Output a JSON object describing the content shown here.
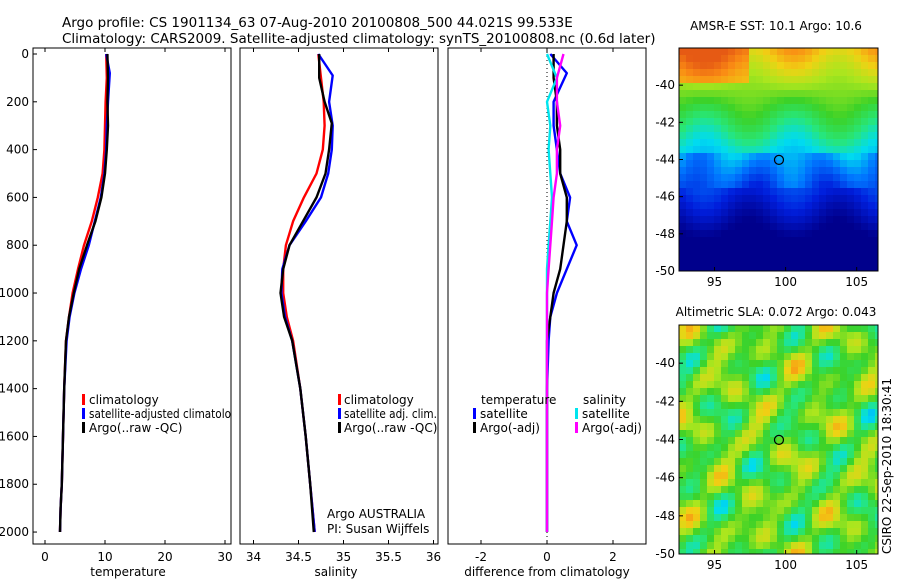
{
  "header": {
    "line1": "Argo profile: CS 1901134_63 07-Aug-2010 20100808_500 44.021S 99.533E",
    "line2": "Climatology: CARS2009. Satellite-adjusted climatology: synTS_20100808.nc (0.6d later)"
  },
  "side_stamp": "CSIRO 22-Sep-2010 18:30:41",
  "colors": {
    "climatology": "#ff0000",
    "satellite": "#0000ff",
    "argo": "#000000",
    "sal_satellite": "#00e5ee",
    "sal_argo": "#ff00ff",
    "zero_line": "#000000"
  },
  "chart_data": [
    {
      "type": "line",
      "id": "temperature",
      "xlabel": "temperature",
      "ylabel": "",
      "xlim": [
        -2,
        31
      ],
      "ylim": [
        0,
        2050
      ],
      "xticks": [
        0,
        10,
        20,
        30
      ],
      "yticks": [
        0,
        200,
        400,
        600,
        800,
        1000,
        1200,
        1400,
        1600,
        1800,
        2000
      ],
      "legend": {
        "position": "lower-right",
        "entries": [
          "climatology",
          "satellite-adjusted climatolo",
          "Argo(..raw -QC)"
        ]
      },
      "series": [
        {
          "name": "climatology",
          "color_key": "climatology",
          "x": [
            10.2,
            10.3,
            10.1,
            10.0,
            9.9,
            9.6,
            8.8,
            7.8,
            6.5,
            5.5,
            4.6,
            4.0,
            3.5,
            3.2,
            3.0,
            2.8,
            2.6,
            2.5
          ],
          "y": [
            0,
            100,
            200,
            300,
            400,
            500,
            600,
            700,
            800,
            900,
            1000,
            1100,
            1200,
            1400,
            1600,
            1800,
            1900,
            2000
          ]
        },
        {
          "name": "satellite-adjusted climatology",
          "color_key": "satellite",
          "x": [
            10.2,
            10.8,
            10.5,
            10.3,
            10.2,
            9.9,
            9.3,
            8.3,
            7.3,
            6.0,
            4.9,
            4.1,
            3.6,
            3.2,
            3.0,
            2.8,
            2.6,
            2.5
          ],
          "y": [
            0,
            80,
            200,
            300,
            400,
            500,
            600,
            700,
            800,
            900,
            1000,
            1100,
            1200,
            1400,
            1600,
            1800,
            1900,
            2000
          ]
        },
        {
          "name": "Argo(..raw -QC)",
          "color_key": "argo",
          "x": [
            10.4,
            10.5,
            10.4,
            10.5,
            10.3,
            10.0,
            9.4,
            8.4,
            7.0,
            5.7,
            4.8,
            4.0,
            3.5,
            3.2,
            3.0,
            2.8,
            2.6,
            2.5
          ],
          "y": [
            0,
            100,
            200,
            300,
            400,
            500,
            600,
            700,
            800,
            900,
            1000,
            1100,
            1200,
            1400,
            1600,
            1800,
            1900,
            2000
          ]
        }
      ]
    },
    {
      "type": "line",
      "id": "salinity",
      "xlabel": "salinity",
      "ylabel": "",
      "xlim": [
        33.85,
        36.05
      ],
      "ylim": [
        0,
        2050
      ],
      "xticks": [
        34,
        34.5,
        35,
        35.5,
        36
      ],
      "legend": {
        "position": "lower-right",
        "entries": [
          "climatology",
          "satellite adj. clim.",
          "Argo(..raw -QC)"
        ]
      },
      "annotation": [
        "Argo AUSTRALIA",
        "PI: Susan Wijffels"
      ],
      "series": [
        {
          "name": "climatology",
          "color_key": "climatology",
          "x": [
            34.72,
            34.75,
            34.78,
            34.79,
            34.77,
            34.7,
            34.56,
            34.44,
            34.36,
            34.33,
            34.33,
            34.37,
            34.44,
            34.52,
            34.58,
            34.63,
            34.68
          ],
          "y": [
            0,
            100,
            200,
            300,
            400,
            500,
            600,
            700,
            800,
            900,
            1000,
            1100,
            1200,
            1400,
            1600,
            1800,
            2000
          ]
        },
        {
          "name": "satellite adj. clim.",
          "color_key": "satellite",
          "x": [
            34.72,
            34.88,
            34.84,
            34.88,
            34.87,
            34.83,
            34.75,
            34.58,
            34.4,
            34.32,
            34.31,
            34.35,
            34.43,
            34.52,
            34.58,
            34.63,
            34.68
          ],
          "y": [
            0,
            90,
            200,
            300,
            400,
            500,
            600,
            700,
            800,
            900,
            1000,
            1100,
            1200,
            1400,
            1600,
            1800,
            2000
          ]
        },
        {
          "name": "Argo(..raw -QC)",
          "color_key": "argo",
          "x": [
            34.73,
            34.73,
            34.79,
            34.87,
            34.84,
            34.8,
            34.7,
            34.55,
            34.4,
            34.33,
            34.3,
            34.34,
            34.43,
            34.52,
            34.58,
            34.63,
            34.67
          ],
          "y": [
            0,
            100,
            200,
            290,
            400,
            500,
            600,
            700,
            800,
            900,
            1000,
            1100,
            1200,
            1400,
            1600,
            1800,
            2000
          ]
        }
      ]
    },
    {
      "type": "line",
      "id": "difference",
      "xlabel": "difference from climatology",
      "ylabel": "",
      "xlim": [
        -3,
        3
      ],
      "ylim": [
        0,
        2050
      ],
      "xticks": [
        -2,
        0,
        2
      ],
      "legend": {
        "position": "lower-center",
        "group_titles": [
          "temperature",
          "salinity"
        ],
        "entries": [
          "satellite",
          "Argo(-adj)",
          "satellite",
          "Argo(-adj)"
        ]
      },
      "series": [
        {
          "name": "temperature satellite",
          "color_key": "satellite",
          "x": [
            0.1,
            0.6,
            0.2,
            0.2,
            0.3,
            0.4,
            0.7,
            0.6,
            0.9,
            0.6,
            0.3,
            0.1,
            0.05,
            0.0,
            0.0
          ],
          "y": [
            0,
            80,
            200,
            300,
            400,
            500,
            600,
            700,
            800,
            900,
            1000,
            1100,
            1200,
            1400,
            2000
          ]
        },
        {
          "name": "temperature Argo(-adj)",
          "color_key": "argo",
          "x": [
            0.2,
            0.2,
            0.3,
            0.3,
            0.4,
            0.4,
            0.6,
            0.6,
            0.5,
            0.4,
            0.2,
            0.1,
            0.0,
            0.0,
            0.0
          ],
          "y": [
            0,
            100,
            200,
            300,
            400,
            500,
            600,
            700,
            800,
            900,
            1000,
            1100,
            1200,
            1400,
            2000
          ]
        },
        {
          "name": "salinity satellite",
          "color_key": "sal_satellite",
          "x": [
            0.0,
            0.3,
            0.0,
            0.1,
            0.05,
            0.1,
            0.15,
            0.1,
            0.05,
            0.0,
            0.0,
            0.0,
            0.0,
            0.0,
            0.0
          ],
          "y": [
            0,
            100,
            200,
            300,
            400,
            500,
            600,
            700,
            800,
            900,
            1000,
            1100,
            1200,
            1400,
            2000
          ]
        },
        {
          "name": "salinity Argo(-adj)",
          "color_key": "sal_argo",
          "x": [
            0.5,
            0.3,
            0.3,
            0.4,
            0.3,
            0.3,
            0.2,
            0.15,
            0.1,
            0.05,
            0.0,
            0.0,
            0.0,
            0.0,
            0.0
          ],
          "y": [
            0,
            100,
            200,
            300,
            400,
            500,
            600,
            700,
            800,
            900,
            1000,
            1100,
            1200,
            1400,
            2000
          ]
        }
      ]
    },
    {
      "type": "heatmap",
      "id": "sst_map",
      "title": "AMSR-E SST: 10.1 Argo: 10.6",
      "xlim": [
        92.5,
        106.5
      ],
      "ylim": [
        -50,
        -38
      ],
      "xticks": [
        95,
        100,
        105
      ],
      "yticks": [
        -40,
        -42,
        -44,
        -46,
        -48,
        -50
      ],
      "marker": {
        "lon": 99.533,
        "lat": -44.021
      }
    },
    {
      "type": "heatmap",
      "id": "sla_map",
      "title": "Altimetric SLA: 0.072 Argo: 0.043",
      "xlim": [
        92.5,
        106.5
      ],
      "ylim": [
        -50,
        -38
      ],
      "xticks": [
        95,
        100,
        105
      ],
      "yticks": [
        -40,
        -42,
        -44,
        -46,
        -48,
        -50
      ],
      "marker": {
        "lon": 99.533,
        "lat": -44.021
      }
    }
  ]
}
